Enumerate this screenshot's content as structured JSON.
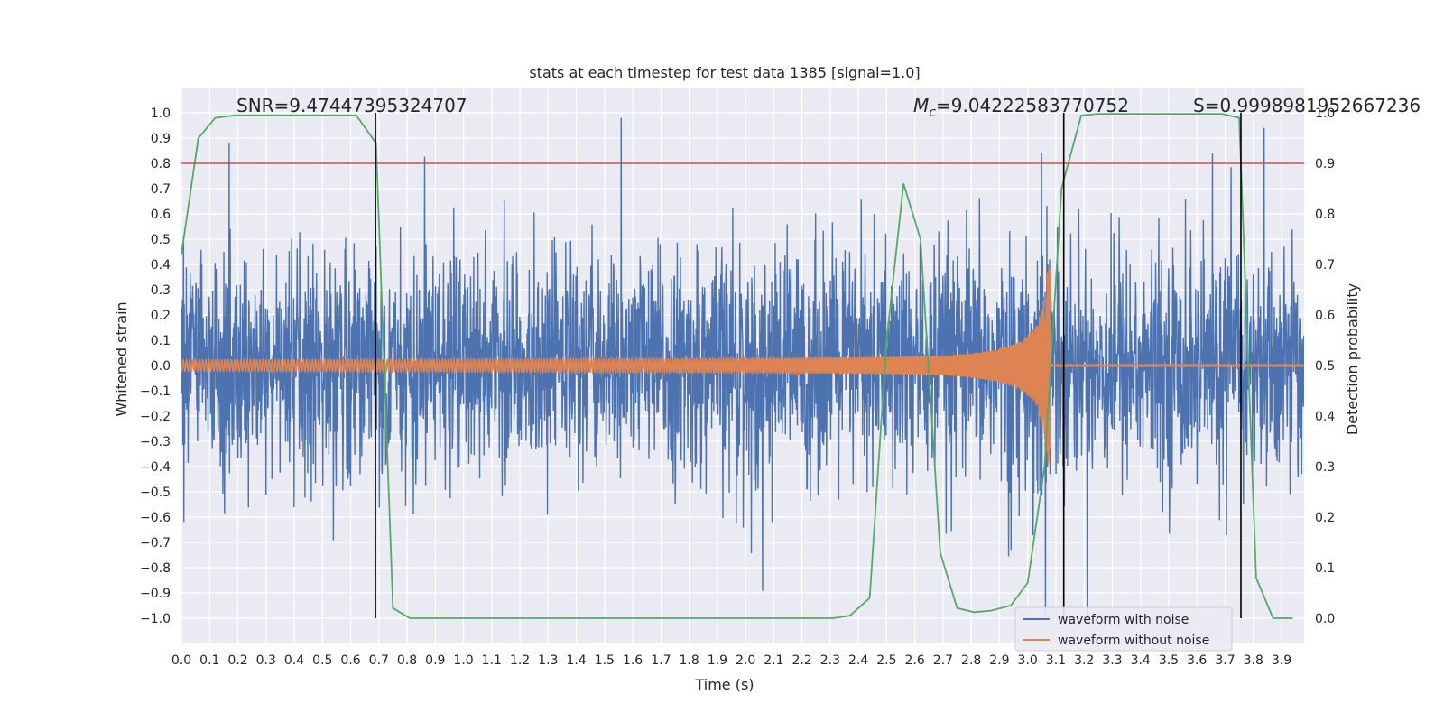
{
  "chart_data": {
    "type": "line",
    "title": "stats at each timestep for test data 1385 [signal=1.0]",
    "xlabel": "Time (s)",
    "ylabel": "Whitened strain",
    "y2label": "Detection probability",
    "xlim": [
      0.0,
      3.98
    ],
    "ylim": [
      -1.1,
      1.1
    ],
    "y2lim": [
      -0.05,
      1.05
    ],
    "x_ticks": [
      0.0,
      0.1,
      0.2,
      0.3,
      0.4,
      0.5,
      0.6,
      0.7,
      0.8,
      0.9,
      1.0,
      1.1,
      1.2,
      1.3,
      1.4,
      1.5,
      1.6,
      1.7,
      1.8,
      1.9,
      2.0,
      2.1,
      2.2,
      2.3,
      2.4,
      2.5,
      2.6,
      2.7,
      2.8,
      2.9,
      3.0,
      3.1,
      3.2,
      3.3,
      3.4,
      3.5,
      3.6,
      3.7,
      3.8,
      3.9
    ],
    "x_tick_labels": [
      "0.0",
      "0.1",
      "0.2",
      "0.3",
      "0.4",
      "0.5",
      "0.6",
      "0.7",
      "0.8",
      "0.9",
      "1.0",
      "1.1",
      "1.2",
      "1.3",
      "1.4",
      "1.5",
      "1.6",
      "1.7",
      "1.8",
      "1.9",
      "2.0",
      "2.1",
      "2.2",
      "2.3",
      "2.4",
      "2.5",
      "2.6",
      "2.7",
      "2.8",
      "2.9",
      "3.0",
      "3.1",
      "3.2",
      "3.3",
      "3.4",
      "3.5",
      "3.6",
      "3.7",
      "3.8",
      "3.9"
    ],
    "y_ticks": [
      1.0,
      0.9,
      0.8,
      0.7,
      0.6,
      0.5,
      0.4,
      0.3,
      0.2,
      0.1,
      0.0,
      -0.1,
      -0.2,
      -0.3,
      -0.4,
      -0.5,
      -0.6,
      -0.7,
      -0.8,
      -0.9,
      -1.0
    ],
    "y_tick_labels": [
      "1.0",
      "0.9",
      "0.8",
      "0.7",
      "0.6",
      "0.5",
      "0.4",
      "0.3",
      "0.2",
      "0.1",
      "0.0",
      "−0.1",
      "−0.2",
      "−0.3",
      "−0.4",
      "−0.5",
      "−0.6",
      "−0.7",
      "−0.8",
      "−0.9",
      "−1.0"
    ],
    "y2_ticks": [
      1.0,
      0.9,
      0.8,
      0.7,
      0.6,
      0.5,
      0.4,
      0.3,
      0.2,
      0.1,
      0.0
    ],
    "y2_tick_labels": [
      "1.0",
      "0.9",
      "0.8",
      "0.7",
      "0.6",
      "0.5",
      "0.4",
      "0.3",
      "0.2",
      "0.1",
      "0.0"
    ],
    "annotations": {
      "snr": "SNR=9.47447395324707",
      "mc_symbol": "M",
      "mc_subscript": "c",
      "mc_value": "=9.04222583770752",
      "s": "S=0.9998981952667236"
    },
    "threshold": {
      "y2": 0.9,
      "color": "#c44e52"
    },
    "vlines_x": [
      0.688,
      3.128,
      3.756
    ],
    "series": [
      {
        "name": "waveform with noise",
        "color": "#4c72b0",
        "axis": "left",
        "description": "dense noisy whitened strain, amplitude ~0.2-0.6 with spikes near +/-0.9"
      },
      {
        "name": "waveform without noise",
        "color": "#dd8452",
        "axis": "left",
        "description": "chirp: amplitude grows from 0.02 to ~0.4 near 3.08 s then flat at 0",
        "merger_time": 3.08,
        "peak_amplitude": 0.4
      },
      {
        "name": "detection probability",
        "color": "#55a868",
        "axis": "right",
        "x": [
          0.0,
          0.06,
          0.12,
          0.19,
          0.25,
          0.31,
          0.37,
          0.44,
          0.5,
          0.56,
          0.62,
          0.69,
          0.75,
          0.81,
          0.87,
          0.94,
          1.0,
          1.06,
          1.12,
          1.19,
          1.25,
          1.31,
          1.37,
          1.44,
          1.5,
          1.56,
          1.62,
          1.69,
          1.75,
          1.81,
          1.87,
          1.94,
          2.0,
          2.06,
          2.12,
          2.19,
          2.25,
          2.31,
          2.37,
          2.44,
          2.5,
          2.56,
          2.62,
          2.69,
          2.75,
          2.81,
          2.87,
          2.94,
          3.0,
          3.06,
          3.12,
          3.19,
          3.25,
          3.31,
          3.37,
          3.44,
          3.5,
          3.56,
          3.62,
          3.69,
          3.75,
          3.81,
          3.87,
          3.94
        ],
        "values": [
          0.72,
          0.95,
          0.99,
          0.995,
          0.995,
          0.995,
          0.995,
          0.995,
          0.995,
          0.995,
          0.995,
          0.94,
          0.02,
          0.0,
          0.0,
          0.0,
          0.0,
          0.0,
          0.0,
          0.0,
          0.0,
          0.0,
          0.0,
          0.0,
          0.0,
          0.0,
          0.0,
          0.0,
          0.0,
          0.0,
          0.0,
          0.0,
          0.0,
          0.0,
          0.0,
          0.0,
          0.0,
          0.0,
          0.005,
          0.04,
          0.55,
          0.86,
          0.75,
          0.13,
          0.02,
          0.012,
          0.015,
          0.025,
          0.07,
          0.3,
          0.85,
          0.995,
          0.998,
          0.998,
          0.998,
          0.998,
          0.998,
          0.998,
          0.998,
          0.998,
          0.99,
          0.08,
          0.0,
          0.0
        ]
      }
    ],
    "legend": {
      "location": "bottom-right",
      "entries": [
        {
          "label": "waveform with noise",
          "color": "#4c72b0"
        },
        {
          "label": "waveform without noise",
          "color": "#dd8452"
        }
      ]
    },
    "background": "#eaeaf2",
    "grid": true
  }
}
